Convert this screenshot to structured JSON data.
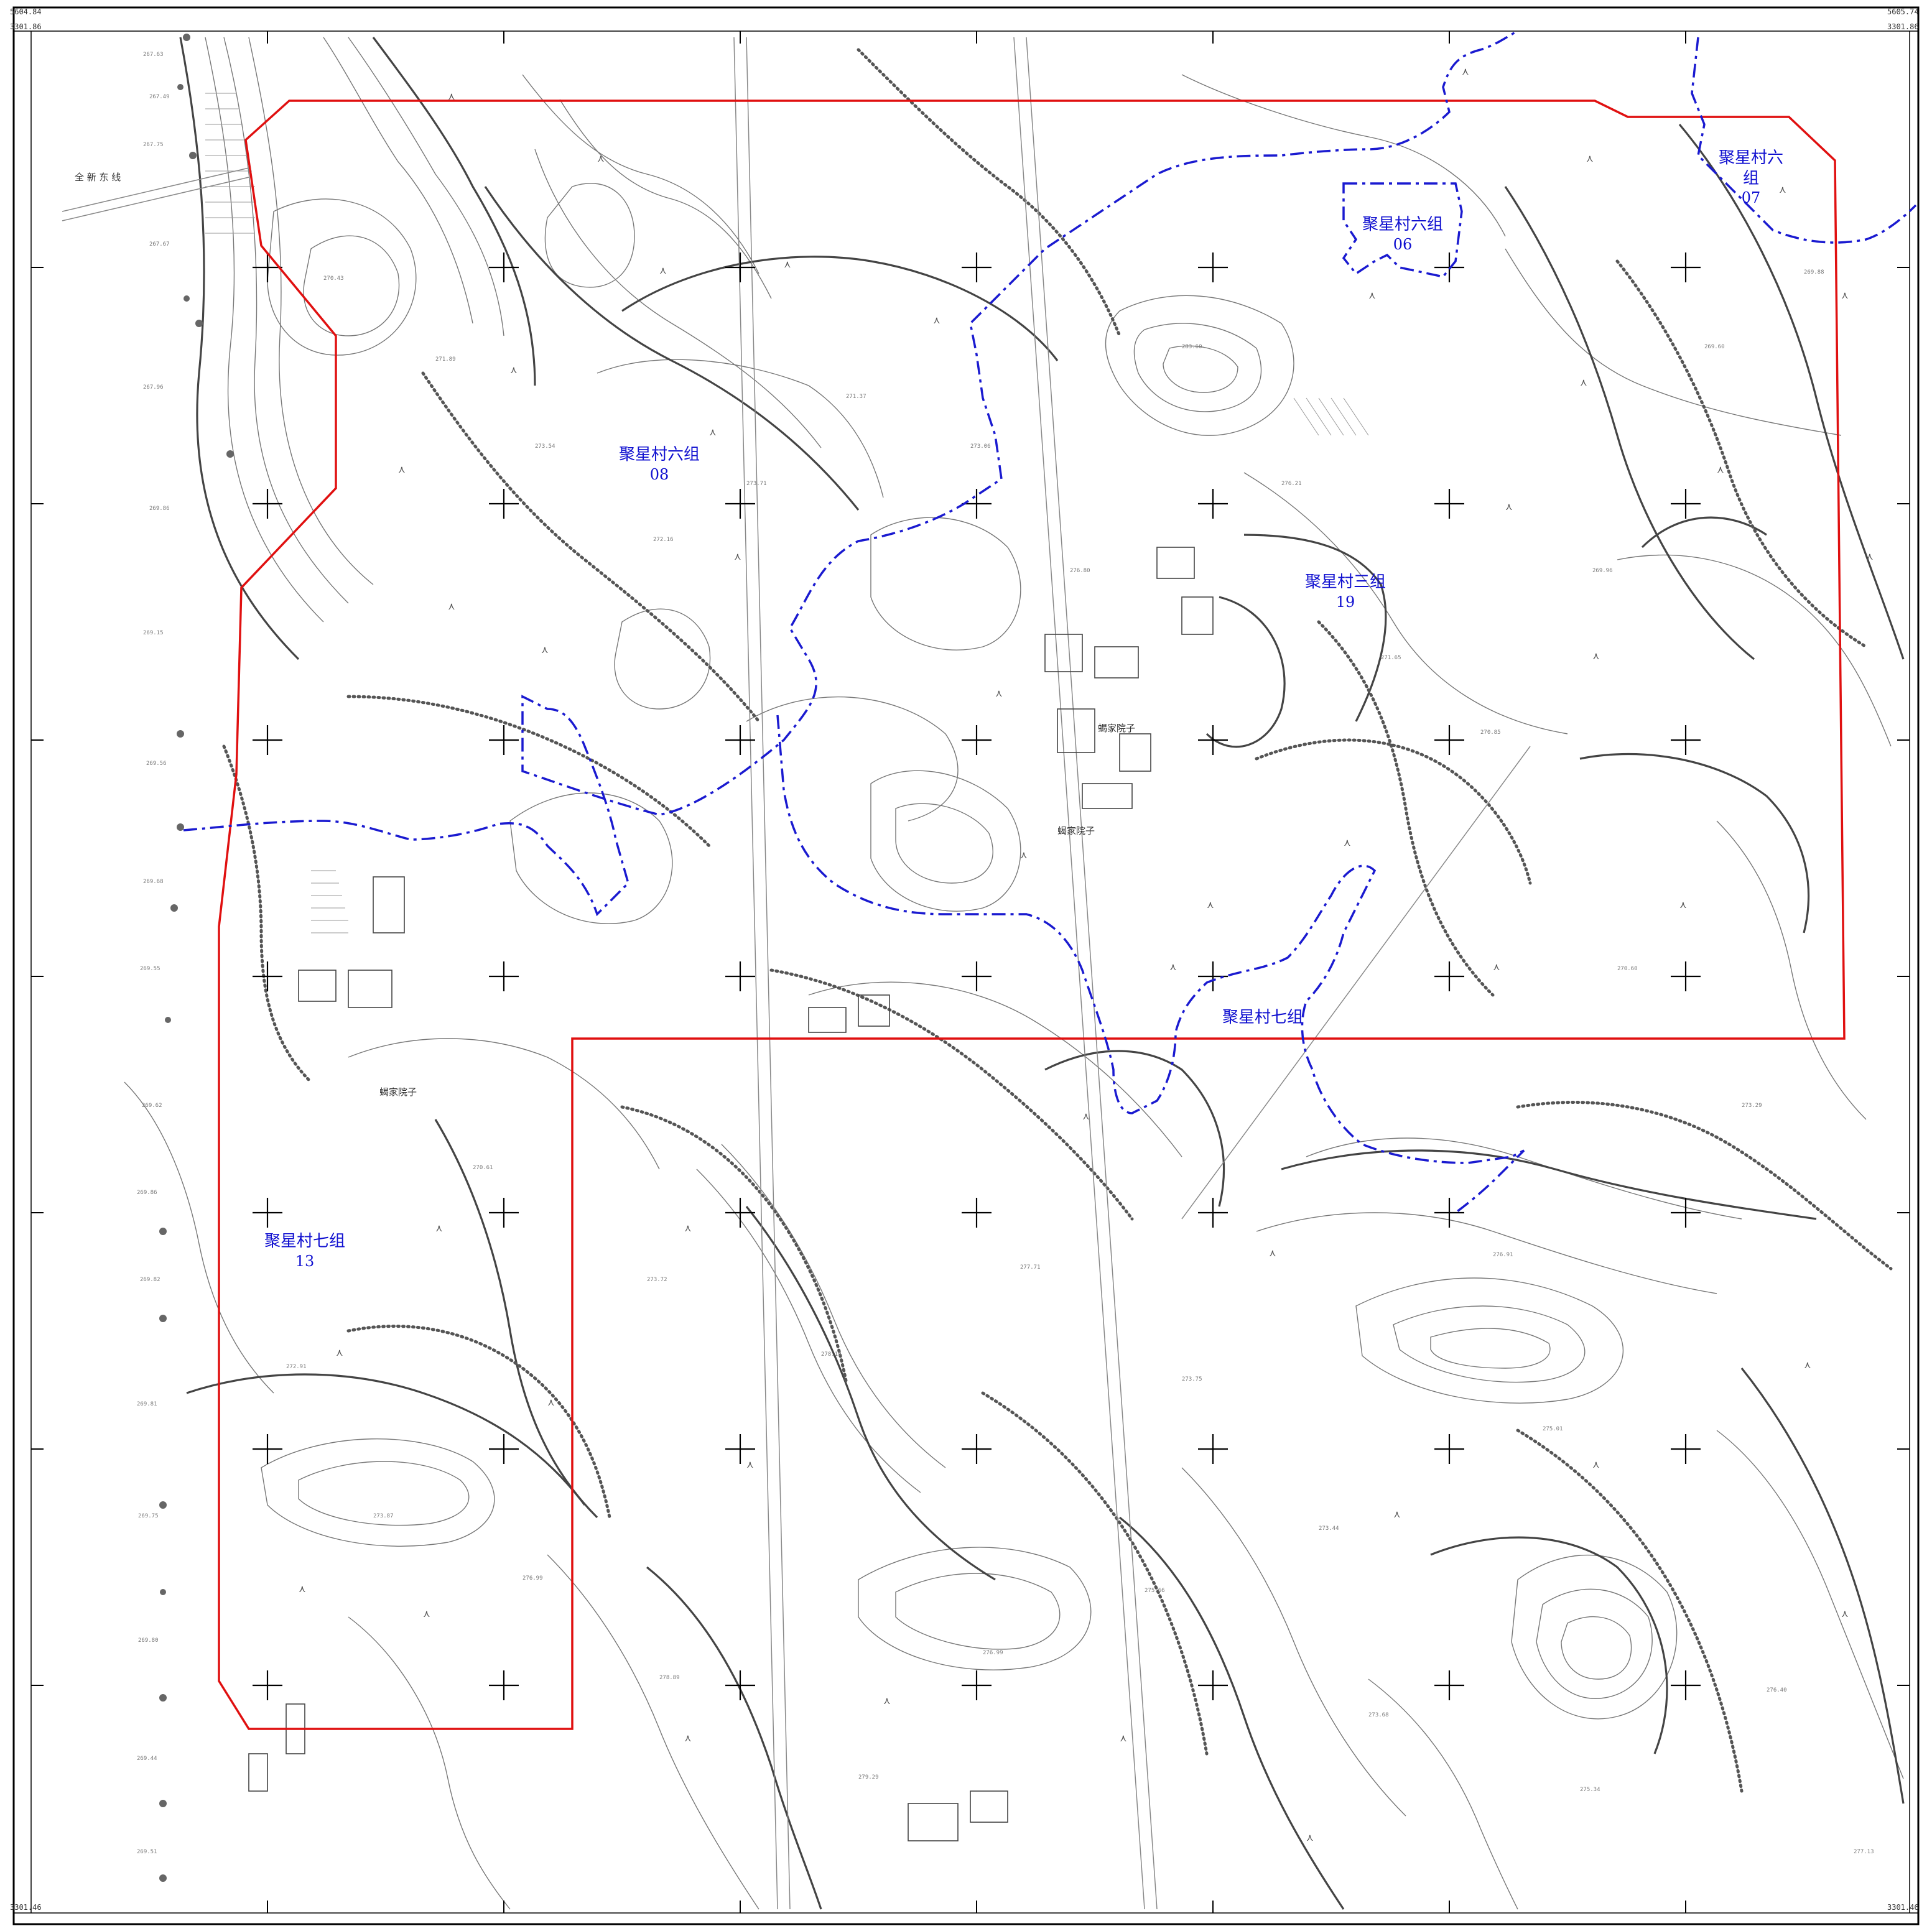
{
  "map": {
    "corner_labels": {
      "top_left_x": "5604.84",
      "top_left_y": "3301.86",
      "top_right_x": "5605.74",
      "top_right_y": "3301.86",
      "bottom_left_y": "3301.46",
      "bottom_right_y": "3301.46"
    },
    "regions": [
      {
        "name": "聚星村六组",
        "code": "07"
      },
      {
        "name": "聚星村六组",
        "code": "06"
      },
      {
        "name": "聚星村六组",
        "code": "08"
      },
      {
        "name": "聚星村三组",
        "code": "19"
      },
      {
        "name": "聚星村七组",
        "code": "13"
      },
      {
        "name": "聚星村七组",
        "code": ""
      }
    ],
    "place_names": [
      "全 新 东 线",
      "蝎家院子",
      "蝎家院子",
      "蝎家院子"
    ],
    "colors": {
      "boundary_red": "#e01010",
      "boundary_blue": "#1a1ad0",
      "contour": "#666666",
      "contour_index": "#333333",
      "frame": "#000000"
    }
  }
}
